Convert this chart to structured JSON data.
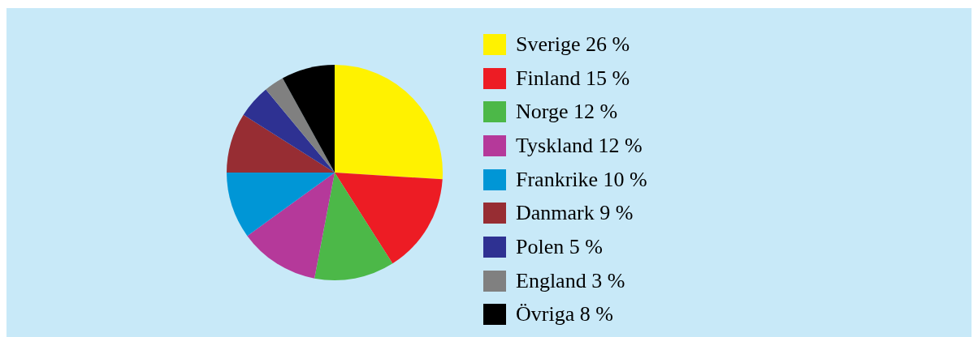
{
  "chart_data": {
    "type": "pie",
    "categories": [
      "Sverige",
      "Finland",
      "Norge",
      "Tyskland",
      "Frankrike",
      "Danmark",
      "Polen",
      "England",
      "Övriga"
    ],
    "values": [
      26,
      15,
      12,
      12,
      10,
      9,
      5,
      3,
      8
    ],
    "value_labels": [
      "26 %",
      "15 %",
      "12 %",
      "12 %",
      "10 %",
      "9 %",
      "5 %",
      "3 %",
      "8 %"
    ],
    "colors": [
      "#fff200",
      "#ed1c24",
      "#4cb848",
      "#b5399a",
      "#0096d6",
      "#972d33",
      "#2e3192",
      "#808080",
      "#000000"
    ],
    "legend": "right"
  }
}
